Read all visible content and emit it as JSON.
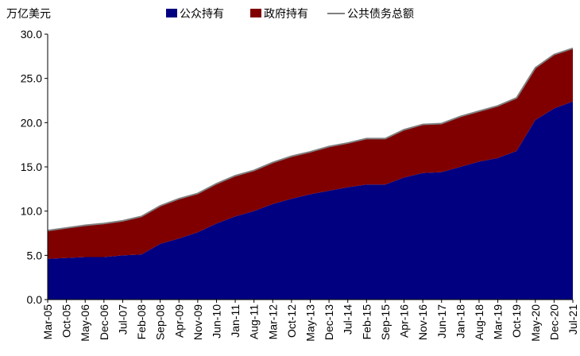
{
  "chart_data": {
    "type": "area",
    "stacked": true,
    "unit_label": "万亿美元",
    "ylim": [
      0,
      30
    ],
    "yticks": [
      "0.0",
      "5.0",
      "10.0",
      "15.0",
      "20.0",
      "25.0",
      "30.0"
    ],
    "grid": false,
    "legend_position": "top",
    "categories": [
      "Mar-05",
      "Oct-05",
      "May-06",
      "Dec-06",
      "Jul-07",
      "Feb-08",
      "Sep-08",
      "Apr-09",
      "Nov-09",
      "Jun-10",
      "Jan-11",
      "Aug-11",
      "Mar-12",
      "Oct-12",
      "May-13",
      "Dec-13",
      "Jul-14",
      "Feb-15",
      "Sep-15",
      "Apr-16",
      "Nov-16",
      "Jun-17",
      "Jan-18",
      "Aug-18",
      "Mar-19",
      "Oct-19",
      "May-20",
      "Dec-20",
      "Jul-21"
    ],
    "series": [
      {
        "name": "公众持有",
        "color": "#000080",
        "values": [
          4.6,
          4.7,
          4.8,
          4.8,
          5.0,
          5.1,
          6.3,
          6.9,
          7.6,
          8.6,
          9.4,
          10.0,
          10.8,
          11.4,
          11.9,
          12.3,
          12.7,
          13.0,
          13.0,
          13.8,
          14.3,
          14.4,
          15.0,
          15.6,
          16.0,
          16.8,
          20.3,
          21.6,
          22.4
        ]
      },
      {
        "name": "政府持有",
        "color": "#800000",
        "values": [
          3.2,
          3.4,
          3.6,
          3.8,
          3.9,
          4.3,
          4.3,
          4.5,
          4.4,
          4.5,
          4.6,
          4.6,
          4.7,
          4.8,
          4.8,
          5.0,
          5.0,
          5.2,
          5.2,
          5.4,
          5.5,
          5.5,
          5.7,
          5.7,
          5.9,
          6.0,
          5.9,
          6.1,
          6.0
        ]
      }
    ],
    "total_line": {
      "name": "公共债务总额",
      "color": "#808080",
      "values": [
        7.8,
        8.1,
        8.4,
        8.6,
        8.9,
        9.4,
        10.6,
        11.4,
        12.0,
        13.1,
        14.0,
        14.6,
        15.5,
        16.2,
        16.7,
        17.3,
        17.7,
        18.2,
        18.2,
        19.2,
        19.8,
        19.9,
        20.7,
        21.3,
        21.9,
        22.8,
        26.2,
        27.7,
        28.4
      ]
    }
  }
}
